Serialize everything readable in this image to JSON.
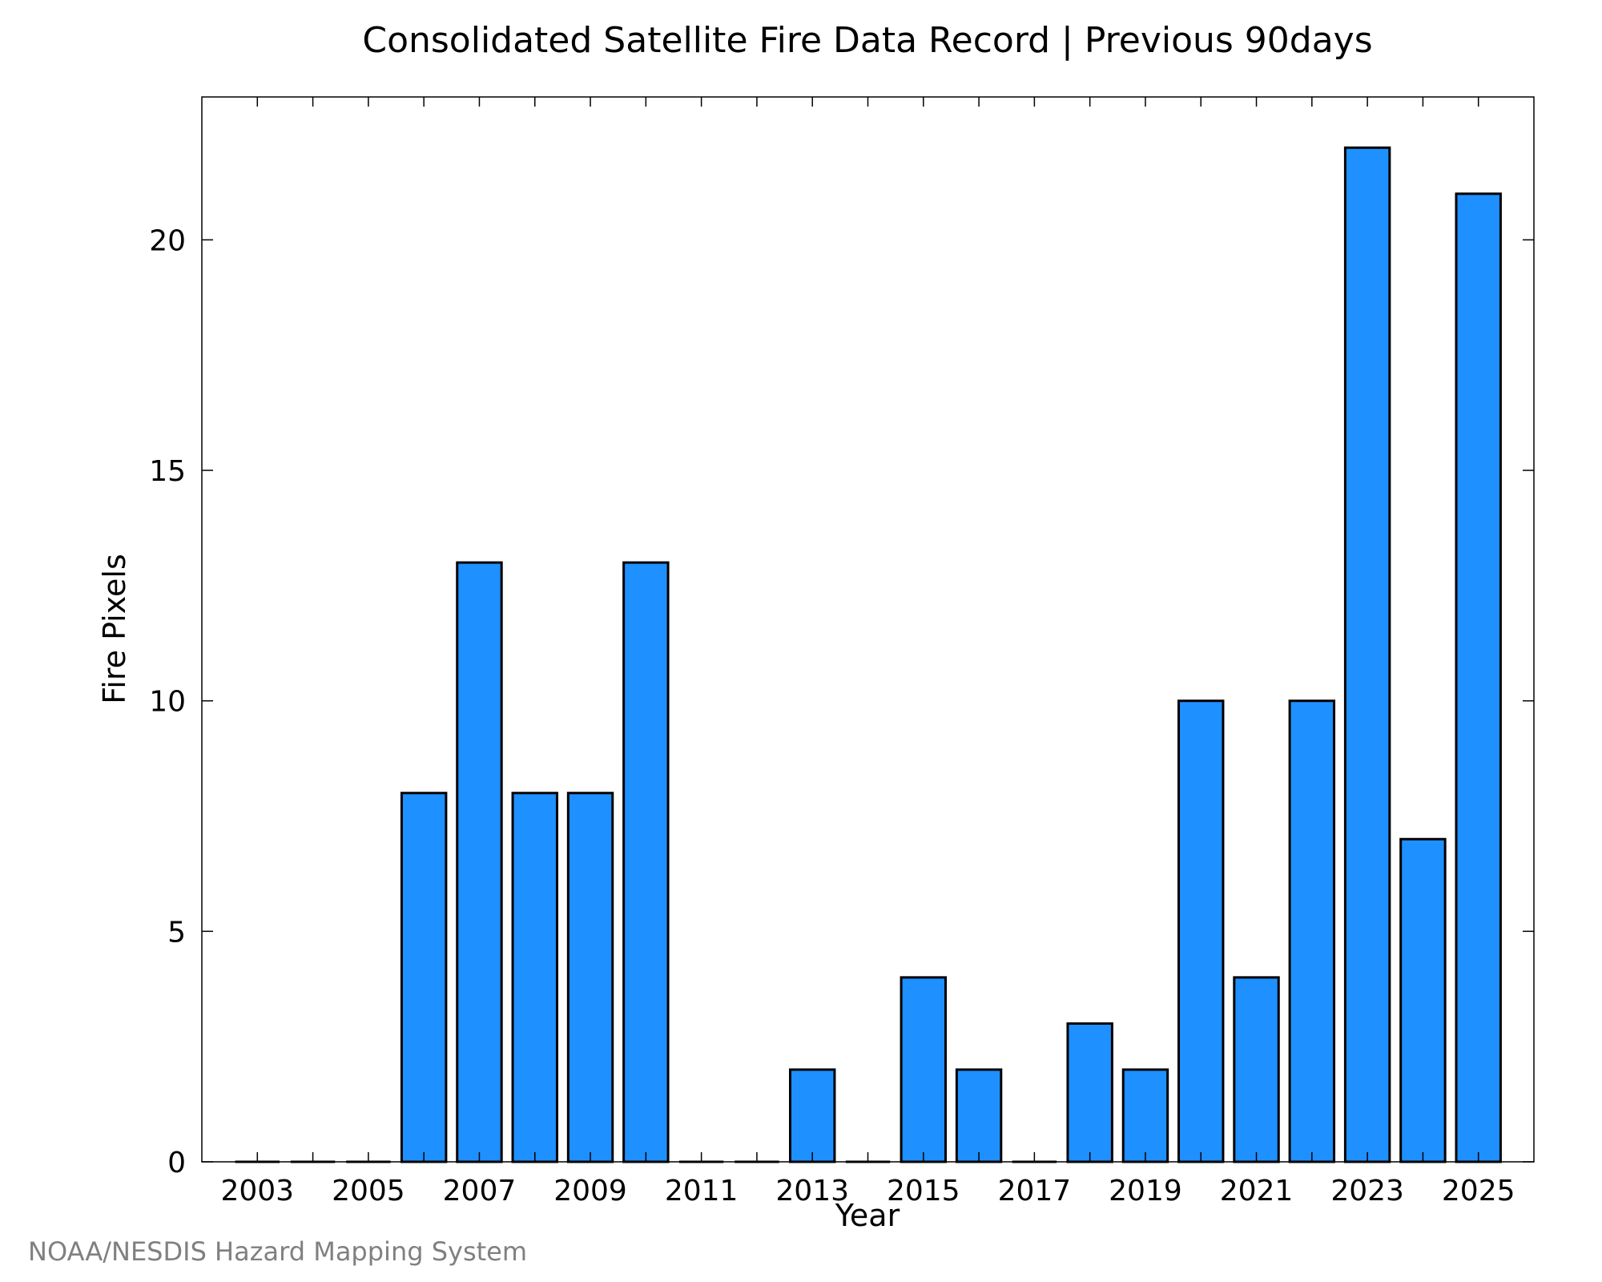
{
  "chart_data": {
    "type": "bar",
    "title": "Consolidated Satellite Fire Data Record | Previous 90days",
    "xlabel": "Year",
    "ylabel": "Fire Pixels",
    "categories": [
      "2003",
      "2004",
      "2005",
      "2006",
      "2007",
      "2008",
      "2009",
      "2010",
      "2011",
      "2012",
      "2013",
      "2014",
      "2015",
      "2016",
      "2017",
      "2018",
      "2019",
      "2020",
      "2021",
      "2022",
      "2023",
      "2024",
      "2025"
    ],
    "values": [
      0,
      0,
      0,
      8,
      13,
      8,
      8,
      13,
      0,
      0,
      2,
      0,
      4,
      2,
      0,
      3,
      2,
      10,
      4,
      10,
      22,
      7,
      21
    ],
    "x_tick_labels": [
      "2003",
      "2005",
      "2007",
      "2009",
      "2011",
      "2013",
      "2015",
      "2017",
      "2019",
      "2021",
      "2023",
      "2025"
    ],
    "y_ticks": [
      0,
      5,
      10,
      15,
      20
    ],
    "ylim": [
      0,
      23.1
    ],
    "xlim": [
      2002,
      2026
    ],
    "bar_color": "#1e90ff",
    "grid": false,
    "legend": "none"
  },
  "credit": "NOAA/NESDIS Hazard Mapping System"
}
